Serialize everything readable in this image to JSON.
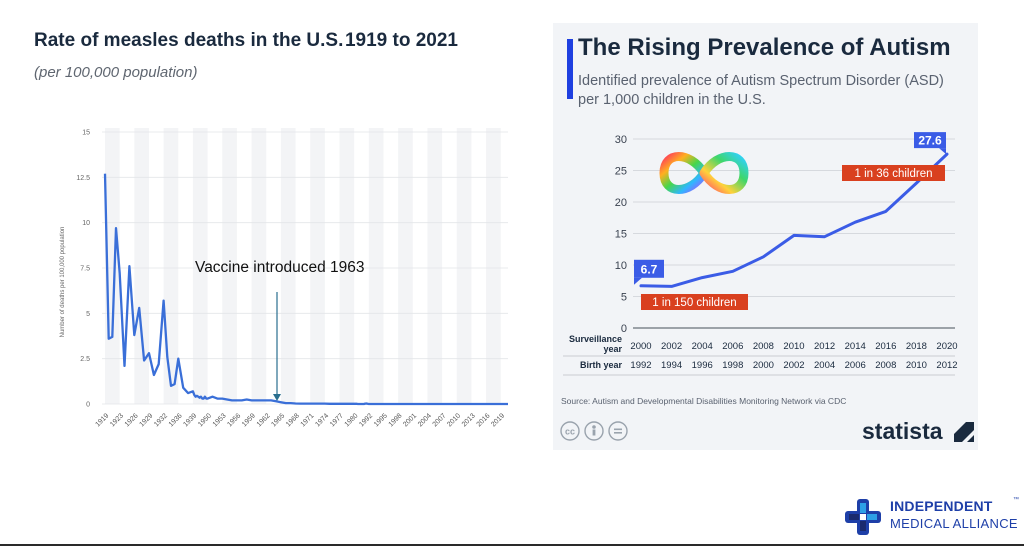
{
  "left_chart": {
    "title": "Rate of measles deaths in the U.S. 1919 to 2021",
    "subtitle": "(per 100,000 population)",
    "annotation": "Vaccine introduced 1963",
    "chart_data": {
      "type": "line",
      "title": "Rate of measles deaths in the U.S. 1919 to 2021",
      "ylabel": "Number of deaths per 100,000 population",
      "xlabel": "",
      "ylim": [
        0,
        15
      ],
      "yticks": [
        "0",
        "2.5",
        "5",
        "7.5",
        "10",
        "12.5",
        "15"
      ],
      "xticks": [
        "1919",
        "1923",
        "1926",
        "1929",
        "1932",
        "1936",
        "1939",
        "1950",
        "1953",
        "1956",
        "1959",
        "1962",
        "1965",
        "1968",
        "1971",
        "1974",
        "1977",
        "1980",
        "1992",
        "1995",
        "1998",
        "2001",
        "2004",
        "2007",
        "2010",
        "2013",
        "2016",
        "2019"
      ],
      "series": [
        {
          "name": "Measles deaths",
          "x": [
            1919,
            1920,
            1921,
            1922,
            1923,
            1924,
            1925,
            1926,
            1927,
            1928,
            1929,
            1930,
            1931,
            1932,
            1933,
            1934,
            1935,
            1936,
            1937,
            1938,
            1939,
            1940,
            1941,
            1942,
            1943,
            1944,
            1945,
            1946,
            1947,
            1948,
            1949,
            1950,
            1951,
            1952,
            1953,
            1954,
            1955,
            1956,
            1957,
            1958,
            1959,
            1960,
            1961,
            1962,
            1963,
            1964,
            1965,
            1966,
            1967,
            1968,
            1969,
            1970,
            1971,
            1972,
            1973,
            1974,
            1975,
            1976,
            1977,
            1978,
            1979,
            1980,
            1981,
            1982,
            1983,
            1984,
            1985,
            1986,
            1987,
            1988,
            1989,
            1990,
            1991,
            1992,
            1995,
            1998,
            2001,
            2004,
            2007,
            2010,
            2013,
            2016,
            2019,
            2021
          ],
          "values": [
            12.7,
            3.6,
            3.7,
            9.7,
            7.2,
            2.1,
            7.6,
            3.8,
            5.3,
            2.4,
            2.8,
            1.6,
            2.2,
            5.7,
            2.6,
            1.0,
            1.1,
            2.5,
            0.9,
            0.6,
            0.7,
            0.5,
            0.4,
            0.45,
            0.4,
            0.35,
            0.4,
            0.3,
            0.3,
            0.4,
            0.3,
            0.3,
            0.4,
            0.3,
            0.3,
            0.25,
            0.2,
            0.2,
            0.2,
            0.25,
            0.2,
            0.2,
            0.2,
            0.2,
            0.2,
            0.15,
            0.1,
            0.05,
            0.05,
            0.03,
            0.02,
            0.02,
            0.02,
            0.02,
            0.02,
            0.02,
            0.01,
            0.01,
            0.01,
            0.01,
            0.01,
            0.01,
            0.01,
            0.01,
            0.0,
            0.0,
            0.0,
            0.0,
            0.0,
            0.0,
            0.02,
            0.03,
            0.01,
            0.0,
            0.0,
            0.0,
            0.0,
            0.0,
            0.0,
            0.0,
            0.0,
            0.0,
            0.0,
            0.0
          ]
        }
      ],
      "annotations": [
        {
          "text": "Vaccine introduced 1963",
          "x": 1963
        }
      ]
    }
  },
  "right_chart": {
    "title": "The Rising Prevalence of Autism",
    "subtitle": "Identified prevalence of Autism Spectrum Disorder (ASD) per 1,000 children in the U.S.",
    "source": "Source: Autism and Developmental Disabilities Monitoring Network via CDC",
    "brand": "statista",
    "row_label_surveillance": "Surveillance year",
    "row_label_birth": "Birth year",
    "callout_low": "1 in 150 children",
    "callout_high": "1 in 36 children",
    "chart_data": {
      "type": "line",
      "title": "The Rising Prevalence of Autism",
      "ylabel": "per 1,000 children",
      "ylim": [
        0,
        30
      ],
      "yticks": [
        "0",
        "5",
        "10",
        "15",
        "20",
        "25",
        "30"
      ],
      "categories": [
        "2000",
        "2002",
        "2004",
        "2006",
        "2008",
        "2010",
        "2012",
        "2014",
        "2016",
        "2018",
        "2020"
      ],
      "birth_years": [
        "1992",
        "1994",
        "1996",
        "1998",
        "2000",
        "2002",
        "2004",
        "2006",
        "2008",
        "2010",
        "2012"
      ],
      "series": [
        {
          "name": "ASD prevalence per 1,000",
          "values": [
            6.7,
            6.6,
            8.0,
            9.0,
            11.3,
            14.7,
            14.5,
            16.8,
            18.5,
            23.0,
            27.6
          ]
        }
      ],
      "data_labels": [
        "6.7",
        "27.6"
      ]
    }
  },
  "logo": {
    "line1": "INDEPENDENT",
    "tm": "™",
    "line2": "MEDICAL ALLIANCE"
  },
  "colors": {
    "line_blue": "#3a6fd8",
    "autism_blue": "#3b5ce6",
    "callout_red": "#d9401f",
    "title_dark": "#1a2a3e"
  }
}
